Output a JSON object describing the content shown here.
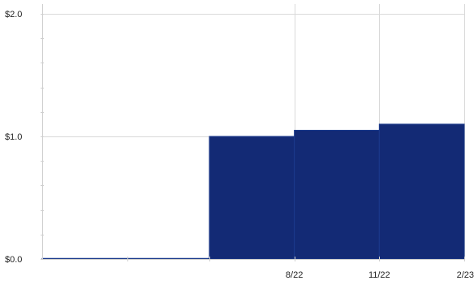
{
  "chart_data": {
    "type": "bar",
    "title": "",
    "xlabel": "",
    "ylabel": "",
    "ylim": [
      0,
      2.0
    ],
    "grid": true,
    "color": "#132a75",
    "y_ticks": [
      {
        "value": 0.0,
        "label": "$0.0"
      },
      {
        "value": 1.0,
        "label": "$1.0"
      },
      {
        "value": 2.0,
        "label": "$2.0"
      }
    ],
    "x_ticks": [
      {
        "date": "2022-08-01",
        "label": "8/22"
      },
      {
        "date": "2022-11-01",
        "label": "11/22"
      },
      {
        "date": "2023-02-01",
        "label": "2/23"
      }
    ],
    "x_range": [
      "2021-11-01",
      "2023-02-01"
    ],
    "minor_x_ticks": [
      "2022-02-01",
      "2022-05-01"
    ],
    "bars": [
      {
        "start": "2021-11-01",
        "end": "2022-05-01",
        "value": 0.005
      },
      {
        "start": "2022-05-01",
        "end": "2022-08-01",
        "value": 1.0
      },
      {
        "start": "2022-08-01",
        "end": "2022-11-01",
        "value": 1.05
      },
      {
        "start": "2022-11-01",
        "end": "2023-02-01",
        "value": 1.1
      }
    ]
  }
}
